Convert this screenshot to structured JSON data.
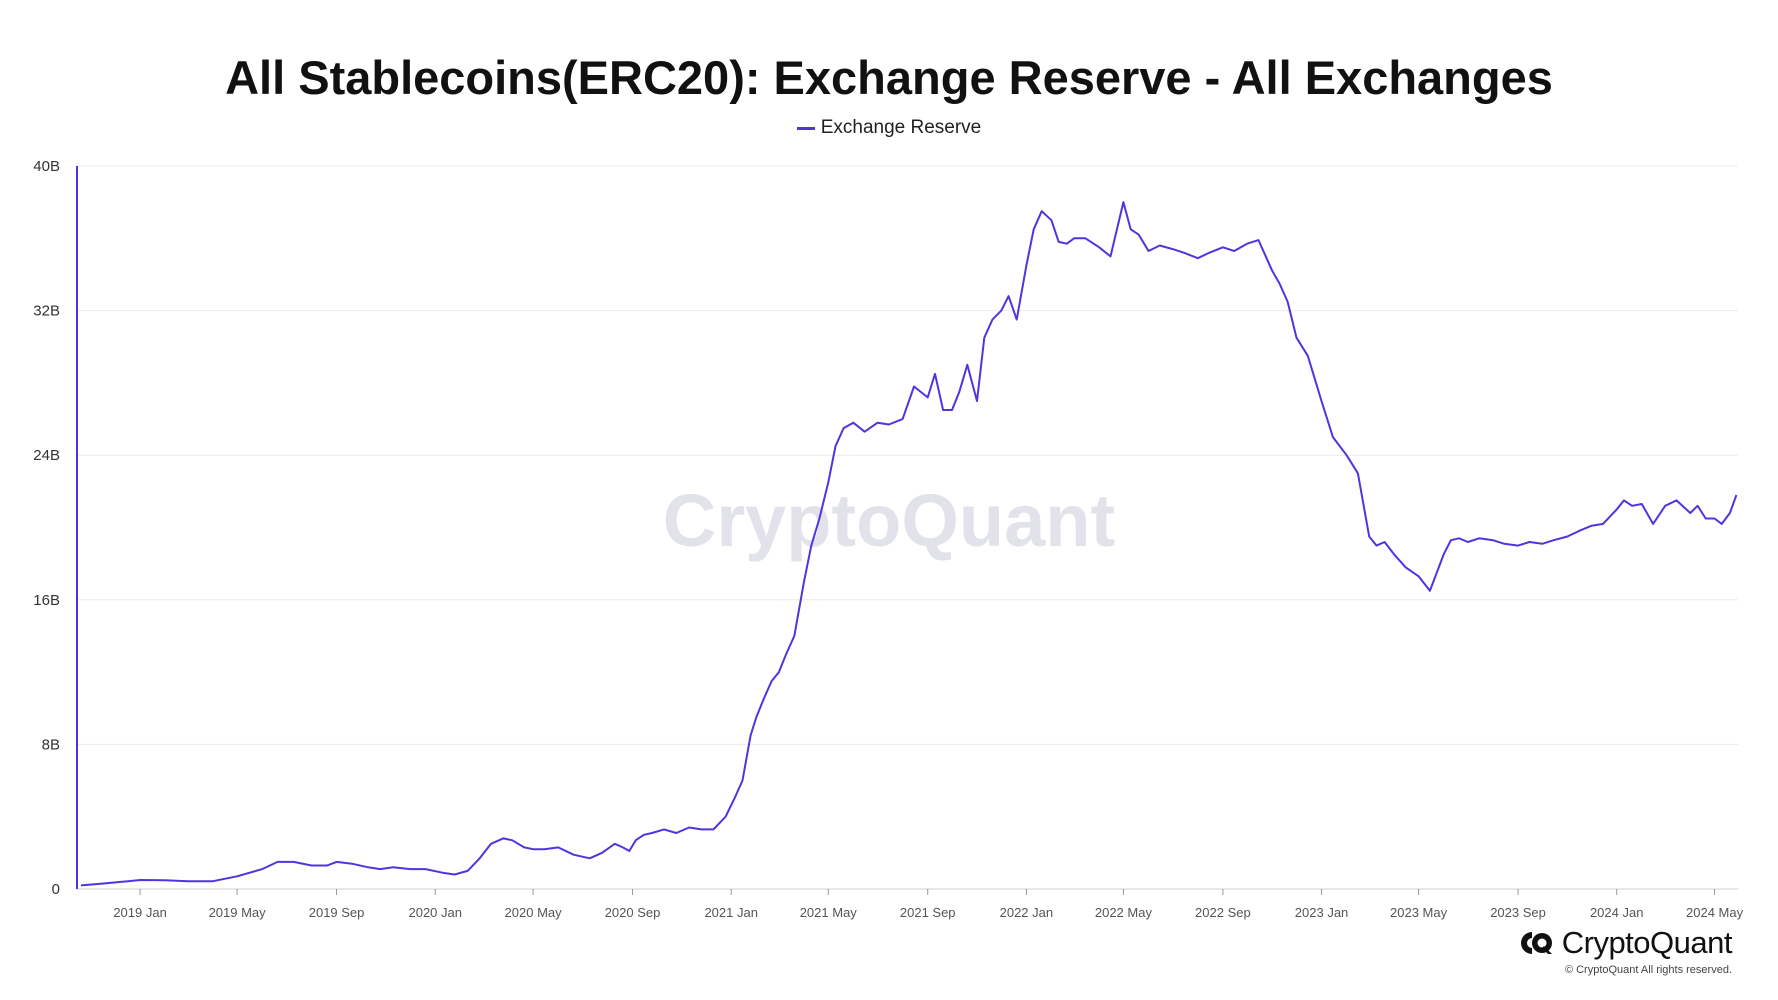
{
  "colors": {
    "series": "#4f35e0",
    "grid": "#ececec",
    "axis": "#555555",
    "watermark": "#e2e3ea"
  },
  "watermark": "CryptoQuant",
  "brand": {
    "icon": "cryptoquant-logo-icon",
    "name": "CryptoQuant",
    "copyright": "© CryptoQuant All rights reserved."
  },
  "chart_data": {
    "type": "line",
    "title": "All Stablecoins(ERC20): Exchange Reserve - All Exchanges",
    "xlabel": "",
    "ylabel": "",
    "legend": "top-center",
    "grid": true,
    "ylim": [
      0,
      40000000000
    ],
    "xlim": [
      "2018-10-15",
      "2024-05-30"
    ],
    "y_ticks": [
      {
        "value": 0,
        "label": "0"
      },
      {
        "value": 8000000000,
        "label": "8B"
      },
      {
        "value": 16000000000,
        "label": "16B"
      },
      {
        "value": 24000000000,
        "label": "24B"
      },
      {
        "value": 32000000000,
        "label": "32B"
      },
      {
        "value": 40000000000,
        "label": "40B"
      }
    ],
    "x_ticks": [
      {
        "date": "2019-01-01",
        "label": "2019 Jan"
      },
      {
        "date": "2019-05-01",
        "label": "2019 May"
      },
      {
        "date": "2019-09-01",
        "label": "2019 Sep"
      },
      {
        "date": "2020-01-01",
        "label": "2020 Jan"
      },
      {
        "date": "2020-05-01",
        "label": "2020 May"
      },
      {
        "date": "2020-09-01",
        "label": "2020 Sep"
      },
      {
        "date": "2021-01-01",
        "label": "2021 Jan"
      },
      {
        "date": "2021-05-01",
        "label": "2021 May"
      },
      {
        "date": "2021-09-01",
        "label": "2021 Sep"
      },
      {
        "date": "2022-01-01",
        "label": "2022 Jan"
      },
      {
        "date": "2022-05-01",
        "label": "2022 May"
      },
      {
        "date": "2022-09-01",
        "label": "2022 Sep"
      },
      {
        "date": "2023-01-01",
        "label": "2023 Jan"
      },
      {
        "date": "2023-05-01",
        "label": "2023 May"
      },
      {
        "date": "2023-09-01",
        "label": "2023 Sep"
      },
      {
        "date": "2024-01-01",
        "label": "2024 Jan"
      },
      {
        "date": "2024-05-01",
        "label": "2024 May"
      }
    ],
    "series": [
      {
        "name": "Exchange Reserve",
        "x": [
          "2018-10-20",
          "2018-11-15",
          "2018-12-10",
          "2019-01-01",
          "2019-02-01",
          "2019-03-01",
          "2019-04-01",
          "2019-05-01",
          "2019-06-01",
          "2019-06-20",
          "2019-07-10",
          "2019-08-01",
          "2019-08-20",
          "2019-09-01",
          "2019-09-20",
          "2019-10-10",
          "2019-10-25",
          "2019-11-10",
          "2019-12-01",
          "2019-12-20",
          "2020-01-10",
          "2020-01-25",
          "2020-02-10",
          "2020-02-25",
          "2020-03-10",
          "2020-03-25",
          "2020-04-05",
          "2020-04-20",
          "2020-05-01",
          "2020-05-15",
          "2020-06-01",
          "2020-06-20",
          "2020-07-10",
          "2020-07-25",
          "2020-08-10",
          "2020-08-20",
          "2020-08-28",
          "2020-09-05",
          "2020-09-15",
          "2020-09-25",
          "2020-10-10",
          "2020-10-25",
          "2020-11-10",
          "2020-11-25",
          "2020-12-10",
          "2020-12-25",
          "2021-01-05",
          "2021-01-15",
          "2021-01-25",
          "2021-02-01",
          "2021-02-10",
          "2021-02-20",
          "2021-03-01",
          "2021-03-10",
          "2021-03-20",
          "2021-04-01",
          "2021-04-10",
          "2021-04-20",
          "2021-05-01",
          "2021-05-10",
          "2021-05-20",
          "2021-06-01",
          "2021-06-15",
          "2021-07-01",
          "2021-07-15",
          "2021-08-01",
          "2021-08-15",
          "2021-09-01",
          "2021-09-10",
          "2021-09-20",
          "2021-10-01",
          "2021-10-10",
          "2021-10-20",
          "2021-11-01",
          "2021-11-10",
          "2021-11-20",
          "2021-12-01",
          "2021-12-10",
          "2021-12-20",
          "2022-01-01",
          "2022-01-10",
          "2022-01-20",
          "2022-02-01",
          "2022-02-10",
          "2022-02-20",
          "2022-03-01",
          "2022-03-15",
          "2022-04-01",
          "2022-04-15",
          "2022-05-01",
          "2022-05-10",
          "2022-05-20",
          "2022-06-01",
          "2022-06-15",
          "2022-07-01",
          "2022-07-15",
          "2022-08-01",
          "2022-08-15",
          "2022-09-01",
          "2022-09-15",
          "2022-10-01",
          "2022-10-15",
          "2022-11-01",
          "2022-11-10",
          "2022-11-20",
          "2022-12-01",
          "2022-12-15",
          "2023-01-01",
          "2023-01-15",
          "2023-02-01",
          "2023-02-15",
          "2023-03-01",
          "2023-03-10",
          "2023-03-20",
          "2023-04-01",
          "2023-04-15",
          "2023-05-01",
          "2023-05-15",
          "2023-06-01",
          "2023-06-10",
          "2023-06-20",
          "2023-07-01",
          "2023-07-15",
          "2023-08-01",
          "2023-08-15",
          "2023-09-01",
          "2023-09-15",
          "2023-10-01",
          "2023-10-15",
          "2023-11-01",
          "2023-11-15",
          "2023-12-01",
          "2023-12-15",
          "2024-01-01",
          "2024-01-10",
          "2024-01-20",
          "2024-02-01",
          "2024-02-15",
          "2024-03-01",
          "2024-03-15",
          "2024-04-01",
          "2024-04-10",
          "2024-04-20",
          "2024-05-01",
          "2024-05-10",
          "2024-05-20",
          "2024-05-28"
        ],
        "values": [
          200000000,
          300000000,
          400000000,
          500000000,
          480000000,
          430000000,
          430000000,
          700000000,
          1100000000,
          1500000000,
          1500000000,
          1300000000,
          1300000000,
          1500000000,
          1400000000,
          1200000000,
          1100000000,
          1200000000,
          1100000000,
          1100000000,
          900000000,
          800000000,
          1000000000,
          1700000000,
          2500000000,
          2800000000,
          2700000000,
          2300000000,
          2200000000,
          2200000000,
          2300000000,
          1900000000,
          1700000000,
          2000000000,
          2500000000,
          2300000000,
          2100000000,
          2700000000,
          3000000000,
          3100000000,
          3300000000,
          3100000000,
          3400000000,
          3300000000,
          3300000000,
          4000000000,
          5000000000,
          6000000000,
          8500000000,
          9500000000,
          10500000000,
          11500000000,
          12000000000,
          13000000000,
          14000000000,
          17000000000,
          19000000000,
          20500000000,
          22500000000,
          24500000000,
          25500000000,
          25800000000,
          25300000000,
          25800000000,
          25700000000,
          26000000000,
          27800000000,
          27200000000,
          28500000000,
          26500000000,
          26500000000,
          27500000000,
          29000000000,
          27000000000,
          30500000000,
          31500000000,
          32000000000,
          32800000000,
          31500000000,
          34500000000,
          36500000000,
          37500000000,
          37000000000,
          35800000000,
          35700000000,
          36000000000,
          36000000000,
          35500000000,
          35000000000,
          38000000000,
          36500000000,
          36200000000,
          35300000000,
          35600000000,
          35400000000,
          35200000000,
          34900000000,
          35200000000,
          35500000000,
          35300000000,
          35700000000,
          35900000000,
          34200000000,
          33500000000,
          32500000000,
          30500000000,
          29500000000,
          27000000000,
          25000000000,
          24000000000,
          23000000000,
          19500000000,
          19000000000,
          19200000000,
          18500000000,
          17800000000,
          17300000000,
          16500000000,
          18500000000,
          19300000000,
          19400000000,
          19200000000,
          19400000000,
          19300000000,
          19100000000,
          19000000000,
          19200000000,
          19100000000,
          19300000000,
          19500000000,
          19800000000,
          20100000000,
          20200000000,
          21000000000,
          21500000000,
          21200000000,
          21300000000,
          20200000000,
          21200000000,
          21500000000,
          20800000000,
          21200000000,
          20500000000,
          20500000000,
          20200000000,
          20800000000,
          21800000000
        ]
      }
    ]
  }
}
